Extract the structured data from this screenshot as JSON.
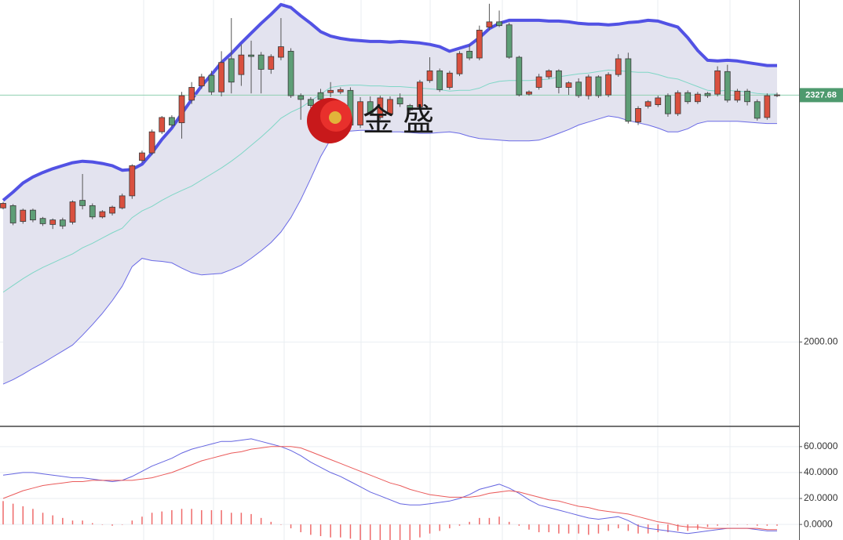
{
  "chart_data": [
    {
      "type": "candlestick",
      "open": [
        2178,
        2181,
        2160,
        2175,
        2164,
        2156,
        2162,
        2159,
        2188,
        2181,
        2166,
        2171,
        2178,
        2194,
        2241,
        2251,
        2279,
        2298,
        2291,
        2321,
        2340,
        2354,
        2332,
        2376,
        2355,
        2381,
        2381,
        2362,
        2378,
        2386,
        2327,
        2322,
        2331,
        2331,
        2332,
        2334,
        2288,
        2319,
        2298,
        2303,
        2324,
        2314,
        2312,
        2347,
        2360,
        2338,
        2356,
        2386,
        2377,
        2418,
        2425,
        2421,
        2378,
        2329,
        2338,
        2352,
        2360,
        2338,
        2345,
        2327,
        2352,
        2328,
        2355,
        2376,
        2292,
        2313,
        2315,
        2327,
        2303,
        2331,
        2319,
        2330,
        2329,
        2359,
        2321,
        2333,
        2319,
        2298,
        2327
      ],
      "high": [
        2186,
        2183,
        2177,
        2177,
        2166,
        2164,
        2165,
        2188,
        2223,
        2184,
        2175,
        2181,
        2197,
        2236,
        2254,
        2282,
        2300,
        2301,
        2332,
        2345,
        2356,
        2360,
        2386,
        2430,
        2395,
        2400,
        2385,
        2382,
        2430,
        2390,
        2330,
        2325,
        2336,
        2345,
        2338,
        2338,
        2325,
        2326,
        2327,
        2326,
        2330,
        2316,
        2348,
        2378,
        2363,
        2360,
        2386,
        2395,
        2420,
        2449,
        2440,
        2424,
        2380,
        2334,
        2356,
        2362,
        2362,
        2346,
        2350,
        2355,
        2354,
        2358,
        2382,
        2384,
        2313,
        2321,
        2327,
        2330,
        2334,
        2334,
        2332,
        2332,
        2366,
        2368,
        2336,
        2336,
        2322,
        2330,
        2331
      ],
      "low": [
        2176,
        2155,
        2157,
        2159,
        2154,
        2150,
        2150,
        2156,
        2176,
        2163,
        2164,
        2168,
        2176,
        2190,
        2238,
        2248,
        2276,
        2285,
        2270,
        2316,
        2336,
        2328,
        2326,
        2330,
        2340,
        2330,
        2330,
        2356,
        2374,
        2324,
        2295,
        2310,
        2318,
        2325,
        2329,
        2285,
        2284,
        2300,
        2295,
        2300,
        2312,
        2305,
        2308,
        2344,
        2332,
        2335,
        2353,
        2374,
        2374,
        2414,
        2418,
        2376,
        2326,
        2327,
        2335,
        2349,
        2330,
        2328,
        2324,
        2322,
        2324,
        2325,
        2352,
        2290,
        2288,
        2310,
        2312,
        2299,
        2300,
        2316,
        2316,
        2324,
        2326,
        2318,
        2318,
        2314,
        2294,
        2295,
        2325
      ],
      "close": [
        2184,
        2158,
        2175,
        2162,
        2157,
        2162,
        2154,
        2186,
        2181,
        2166,
        2173,
        2179,
        2194,
        2234,
        2251,
        2279,
        2298,
        2288,
        2327,
        2338,
        2352,
        2332,
        2371,
        2345,
        2381,
        2379,
        2362,
        2379,
        2392,
        2327,
        2322,
        2314,
        2322,
        2334,
        2335,
        2288,
        2319,
        2303,
        2324,
        2322,
        2316,
        2308,
        2345,
        2360,
        2335,
        2357,
        2383,
        2377,
        2414,
        2425,
        2420,
        2378,
        2328,
        2332,
        2352,
        2360,
        2338,
        2344,
        2327,
        2352,
        2327,
        2355,
        2376,
        2293,
        2310,
        2319,
        2324,
        2303,
        2331,
        2319,
        2329,
        2327,
        2360,
        2321,
        2333,
        2319,
        2297,
        2327,
        2328
      ],
      "up_color": "#d9503f",
      "down_color": "#5e9e76",
      "bands": {
        "fill": "#e3e3ef",
        "upper": {
          "color": "#5252e4",
          "values": [
            2188,
            2199,
            2211,
            2219,
            2225,
            2230,
            2234,
            2238,
            2240,
            2239,
            2237,
            2234,
            2228,
            2229,
            2236,
            2251,
            2269,
            2284,
            2303,
            2322,
            2340,
            2355,
            2371,
            2383,
            2397,
            2410,
            2423,
            2435,
            2448,
            2444,
            2433,
            2423,
            2412,
            2406,
            2403,
            2401,
            2400,
            2399,
            2399,
            2398,
            2399,
            2398,
            2397,
            2395,
            2392,
            2386,
            2390,
            2394,
            2404,
            2416,
            2423,
            2427,
            2427,
            2427,
            2427,
            2426,
            2426,
            2425,
            2423,
            2422,
            2422,
            2421,
            2422,
            2424,
            2425,
            2427,
            2426,
            2422,
            2418,
            2404,
            2387,
            2374,
            2373,
            2374,
            2373,
            2371,
            2369,
            2367,
            2367
          ]
        },
        "middle": {
          "color": "#7fd6c6",
          "values": [
            2066,
            2075,
            2084,
            2092,
            2099,
            2105,
            2111,
            2117,
            2125,
            2131,
            2138,
            2145,
            2151,
            2165,
            2174,
            2180,
            2188,
            2195,
            2201,
            2207,
            2215,
            2223,
            2231,
            2240,
            2250,
            2261,
            2272,
            2284,
            2297,
            2305,
            2311,
            2320,
            2329,
            2338,
            2340,
            2341,
            2341,
            2340,
            2340,
            2339,
            2339,
            2338,
            2337,
            2336,
            2335,
            2333,
            2334,
            2334,
            2337,
            2343,
            2346,
            2347,
            2347,
            2347,
            2348,
            2349,
            2352,
            2354,
            2356,
            2357,
            2359,
            2361,
            2360,
            2359,
            2358,
            2358,
            2355,
            2351,
            2349,
            2344,
            2339,
            2334,
            2333,
            2334,
            2333,
            2332,
            2330,
            2329,
            2329
          ]
        },
        "lower": {
          "color": "#6a6ae6",
          "values": [
            1944,
            1950,
            1957,
            1965,
            1972,
            1980,
            1988,
            1996,
            2009,
            2023,
            2038,
            2055,
            2074,
            2100,
            2111,
            2108,
            2107,
            2105,
            2098,
            2092,
            2089,
            2090,
            2091,
            2096,
            2102,
            2111,
            2121,
            2132,
            2146,
            2165,
            2189,
            2217,
            2246,
            2269,
            2277,
            2280,
            2281,
            2281,
            2280,
            2279,
            2279,
            2278,
            2277,
            2277,
            2278,
            2279,
            2277,
            2273,
            2270,
            2269,
            2268,
            2267,
            2267,
            2267,
            2268,
            2272,
            2277,
            2282,
            2288,
            2292,
            2296,
            2300,
            2298,
            2294,
            2291,
            2288,
            2284,
            2279,
            2279,
            2283,
            2290,
            2293,
            2293,
            2293,
            2293,
            2292,
            2291,
            2290,
            2290
          ]
        }
      },
      "last_price": {
        "value": 2327.68,
        "label": "2327.68"
      },
      "last_price_color": "#4e9a6e",
      "ylim": [
        1889,
        2454
      ],
      "yticks": [
        {
          "value": 2000,
          "label": "2000.00"
        }
      ],
      "grid": true,
      "watermark": "金 盛"
    },
    {
      "type": "macd",
      "series": [
        {
          "color": "#6464e0",
          "values": [
            38,
            39,
            40,
            40,
            39,
            38,
            37,
            36,
            36,
            35,
            34,
            33,
            34,
            37,
            41,
            45,
            48,
            51,
            55,
            58,
            60,
            62,
            64,
            64,
            65,
            66,
            64,
            62,
            60,
            57,
            53,
            48,
            44,
            40,
            37,
            33,
            29,
            25,
            22,
            19,
            16,
            15,
            15,
            16,
            17,
            18,
            20,
            23,
            27,
            29,
            31,
            28,
            24,
            19,
            15,
            13,
            11,
            9,
            7,
            5,
            4,
            5,
            6,
            3,
            -1,
            -3,
            -4,
            -5,
            -6,
            -7,
            -6,
            -5,
            -4,
            -3,
            -3,
            -3,
            -4,
            -5,
            -5
          ]
        },
        {
          "color": "#ea5a5a",
          "values": [
            20,
            23,
            26,
            28,
            30,
            31,
            32,
            33,
            33,
            34,
            34,
            34,
            34,
            34,
            35,
            36,
            38,
            40,
            43,
            46,
            49,
            51,
            53,
            55,
            56,
            58,
            59,
            60,
            60,
            60,
            59,
            56,
            53,
            50,
            47,
            44,
            41,
            38,
            35,
            32,
            30,
            27,
            25,
            23,
            22,
            21,
            21,
            21,
            22,
            24,
            25,
            26,
            25,
            23,
            21,
            19,
            18,
            16,
            14,
            13,
            11,
            10,
            9,
            8,
            6,
            4,
            2,
            1,
            -1,
            -2,
            -2,
            -3,
            -3,
            -3,
            -3,
            -3,
            -3,
            -4,
            -4
          ]
        }
      ],
      "histogram": {
        "color": "#ef6a6a",
        "values": [
          18,
          16,
          14,
          12,
          9,
          7,
          5,
          3,
          3,
          1,
          0,
          -1,
          0,
          3,
          6,
          9,
          10,
          11,
          12,
          12,
          11,
          11,
          11,
          9,
          9,
          8,
          5,
          2,
          0,
          -3,
          -6,
          -8,
          -9,
          -10,
          -10,
          -11,
          -12,
          -13,
          -13,
          -13,
          -14,
          -12,
          -10,
          -7,
          -5,
          -3,
          -1,
          2,
          5,
          5,
          6,
          2,
          -1,
          -4,
          -6,
          -6,
          -7,
          -7,
          -7,
          -8,
          -7,
          -5,
          -3,
          -5,
          -7,
          -7,
          -6,
          -6,
          -5,
          -5,
          -4,
          -2,
          -1,
          0,
          0,
          0,
          -1,
          -1,
          -1
        ]
      },
      "ylim": [
        -12,
        75
      ],
      "yticks": [
        {
          "value": 0,
          "label": "0.0000"
        },
        {
          "value": 20,
          "label": "20.0000"
        },
        {
          "value": 40,
          "label": "40.0000"
        },
        {
          "value": 60,
          "label": "60.0000"
        }
      ],
      "grid": true
    }
  ]
}
